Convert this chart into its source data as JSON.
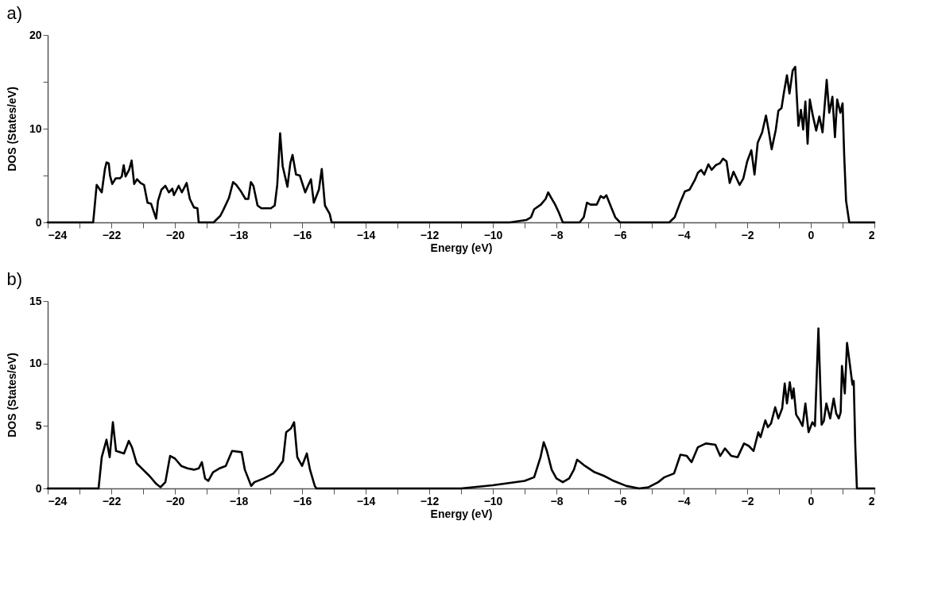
{
  "chart_data": [
    {
      "type": "line",
      "title": "a)",
      "xlabel": "Energy (eV)",
      "ylabel": "DOS (States/eV)",
      "grid": false,
      "line_style": "solid",
      "xlim": [
        -24,
        2
      ],
      "ylim": [
        0,
        20
      ],
      "xticks": [
        -24,
        {
          "value": -23,
          "label": null
        },
        -22,
        {
          "value": -21,
          "label": null
        },
        -20,
        {
          "value": -19,
          "label": null
        },
        -18,
        {
          "value": -17,
          "label": null
        },
        -16,
        {
          "value": -15,
          "label": null
        },
        -14,
        {
          "value": -13,
          "label": null
        },
        -12,
        {
          "value": -11,
          "label": null
        },
        -10,
        {
          "value": -9,
          "label": null
        },
        -8,
        {
          "value": -7,
          "label": null
        },
        -6,
        {
          "value": -5,
          "label": null
        },
        -4,
        {
          "value": -3,
          "label": null
        },
        -2,
        {
          "value": -1,
          "label": null
        },
        0,
        {
          "value": 1,
          "label": null
        },
        2
      ],
      "yticks": [
        0,
        {
          "value": 5,
          "label": null
        },
        10,
        {
          "value": 15,
          "label": null
        },
        20
      ],
      "series": [
        {
          "color": "#000000",
          "x": [
            -24,
            -22.57,
            -22.52,
            -22.46,
            -22.4,
            -22.3,
            -22.2,
            -22.15,
            -22.08,
            -22.04,
            -21.97,
            -21.86,
            -21.73,
            -21.67,
            -21.61,
            -21.55,
            -21.44,
            -21.36,
            -21.28,
            -21.19,
            -21.08,
            -20.97,
            -20.86,
            -20.75,
            -20.59,
            -20.53,
            -20.42,
            -20.3,
            -20.19,
            -20.08,
            -20.03,
            -19.88,
            -19.78,
            -19.63,
            -19.53,
            -19.4,
            -19.29,
            -19.25,
            -18.78,
            -18.57,
            -18.48,
            -18.3,
            -18.17,
            -18.07,
            -17.92,
            -17.78,
            -17.69,
            -17.61,
            -17.53,
            -17.4,
            -17.28,
            -16.98,
            -16.86,
            -16.78,
            -16.69,
            -16.61,
            -16.46,
            -16.37,
            -16.3,
            -16.19,
            -16.07,
            -15.9,
            -15.8,
            -15.72,
            -15.63,
            -15.47,
            -15.38,
            -15.28,
            -15.13,
            -15.07,
            -9.46,
            -8.95,
            -8.8,
            -8.7,
            -8.49,
            -8.34,
            -8.26,
            -8.16,
            -8.04,
            -7.93,
            -7.8,
            -7.27,
            -7.14,
            -7.04,
            -6.93,
            -6.73,
            -6.61,
            -6.51,
            -6.43,
            -6.3,
            -6.15,
            -6.0,
            -4.45,
            -4.28,
            -4.11,
            -3.96,
            -3.81,
            -3.65,
            -3.55,
            -3.45,
            -3.35,
            -3.22,
            -3.12,
            -2.99,
            -2.86,
            -2.76,
            -2.65,
            -2.55,
            -2.43,
            -2.24,
            -2.12,
            -2.0,
            -1.87,
            -1.77,
            -1.67,
            -1.53,
            -1.41,
            -1.33,
            -1.23,
            -1.1,
            -1.02,
            -0.92,
            -0.85,
            -0.75,
            -0.67,
            -0.57,
            -0.49,
            -0.39,
            -0.31,
            -0.24,
            -0.17,
            -0.1,
            -0.03,
            0.07,
            0.17,
            0.27,
            0.37,
            0.5,
            0.58,
            0.68,
            0.76,
            0.83,
            0.93,
            1.0,
            1.05,
            1.11,
            1.21,
            2
          ],
          "values": [
            0,
            0,
            1.8,
            4.0,
            3.7,
            3.2,
            5.7,
            6.4,
            6.3,
            5.0,
            4.1,
            4.7,
            4.7,
            4.9,
            6.1,
            4.9,
            5.6,
            6.6,
            4.1,
            4.6,
            4.2,
            4.0,
            2.1,
            2.0,
            0.4,
            2.3,
            3.5,
            3.9,
            3.2,
            3.6,
            2.9,
            3.9,
            3.2,
            4.2,
            2.5,
            1.6,
            1.5,
            0,
            0,
            0.7,
            1.3,
            2.6,
            4.3,
            4.0,
            3.3,
            2.5,
            2.5,
            4.3,
            3.9,
            1.8,
            1.5,
            1.5,
            1.8,
            4.0,
            9.5,
            6.0,
            3.8,
            6.3,
            7.2,
            5.1,
            5.0,
            3.2,
            4.0,
            4.6,
            2.1,
            3.5,
            5.7,
            1.8,
            0.9,
            0,
            0,
            0.25,
            0.55,
            1.4,
            1.9,
            2.5,
            3.2,
            2.6,
            1.9,
            1.1,
            0,
            0,
            0.55,
            2.1,
            1.9,
            1.9,
            2.8,
            2.6,
            2.9,
            1.8,
            0.55,
            0,
            0,
            0.55,
            2.1,
            3.3,
            3.5,
            4.5,
            5.3,
            5.6,
            5.1,
            6.2,
            5.6,
            6.1,
            6.3,
            6.8,
            6.5,
            4.2,
            5.4,
            4.0,
            4.7,
            6.5,
            7.7,
            5.1,
            8.5,
            9.6,
            11.4,
            9.9,
            7.8,
            9.9,
            11.9,
            12.2,
            13.75,
            15.7,
            13.75,
            16.2,
            16.6,
            10.3,
            12.0,
            9.9,
            12.9,
            8.4,
            13.1,
            11.3,
            9.8,
            11.3,
            9.6,
            15.2,
            11.7,
            13.4,
            9.1,
            13.1,
            11.7,
            12.7,
            7.2,
            2.3,
            0,
            0
          ]
        }
      ]
    },
    {
      "type": "line",
      "title": "b)",
      "xlabel": "Energy (eV)",
      "ylabel": "DOS (States/eV)",
      "grid": false,
      "line_style": "solid",
      "xlim": [
        -24,
        2
      ],
      "ylim": [
        0,
        15
      ],
      "xticks": [
        -24,
        {
          "value": -23,
          "label": null
        },
        -22,
        {
          "value": -21,
          "label": null
        },
        -20,
        {
          "value": -19,
          "label": null
        },
        -18,
        {
          "value": -17,
          "label": null
        },
        -16,
        {
          "value": -15,
          "label": null
        },
        -14,
        {
          "value": -13,
          "label": null
        },
        -12,
        {
          "value": -11,
          "label": null
        },
        -10,
        {
          "value": -9,
          "label": null
        },
        -8,
        {
          "value": -7,
          "label": null
        },
        -6,
        {
          "value": -5,
          "label": null
        },
        -4,
        {
          "value": -3,
          "label": null
        },
        -2,
        {
          "value": -1,
          "label": null
        },
        0,
        {
          "value": 1,
          "label": null
        },
        2
      ],
      "yticks": [
        0,
        5,
        10,
        15
      ],
      "series": [
        {
          "color": "#000000",
          "x": [
            -24,
            -22.4,
            -22.3,
            -22.15,
            -22.05,
            -21.95,
            -21.85,
            -21.6,
            -21.45,
            -21.35,
            -21.2,
            -21.0,
            -20.8,
            -20.6,
            -20.45,
            -20.3,
            -20.15,
            -20.0,
            -19.8,
            -19.6,
            -19.4,
            -19.25,
            -19.15,
            -19.05,
            -18.95,
            -18.8,
            -18.6,
            -18.4,
            -18.2,
            -17.9,
            -17.8,
            -17.6,
            -17.5,
            -17.2,
            -16.9,
            -16.8,
            -16.6,
            -16.5,
            -16.35,
            -16.25,
            -16.15,
            -16.0,
            -15.85,
            -15.75,
            -15.6,
            -15.55,
            -11,
            -10,
            -9,
            -8.7,
            -8.5,
            -8.4,
            -8.3,
            -8.15,
            -8.0,
            -7.8,
            -7.6,
            -7.45,
            -7.35,
            -7.1,
            -6.8,
            -6.5,
            -6.2,
            -5.8,
            -5.4,
            -5.1,
            -4.8,
            -4.6,
            -4.3,
            -4.1,
            -3.9,
            -3.75,
            -3.55,
            -3.3,
            -3.0,
            -2.85,
            -2.7,
            -2.5,
            -2.3,
            -2.1,
            -1.95,
            -1.8,
            -1.65,
            -1.58,
            -1.43,
            -1.35,
            -1.25,
            -1.12,
            -1.02,
            -0.9,
            -0.82,
            -0.75,
            -0.66,
            -0.59,
            -0.54,
            -0.46,
            -0.36,
            -0.26,
            -0.17,
            -0.07,
            0.05,
            0.13,
            0.24,
            0.34,
            0.41,
            0.49,
            0.61,
            0.72,
            0.8,
            0.88,
            0.94,
            0.98,
            1.07,
            1.14,
            1.23,
            1.31,
            1.35,
            1.4,
            1.45,
            2
          ],
          "values": [
            0,
            0,
            2.5,
            3.9,
            2.5,
            5.3,
            3,
            2.8,
            3.8,
            3.3,
            2,
            1.5,
            1.0,
            0.4,
            0.1,
            0.5,
            2.6,
            2.4,
            1.8,
            1.6,
            1.5,
            1.6,
            2.1,
            0.8,
            0.6,
            1.3,
            1.6,
            1.8,
            3.0,
            2.9,
            1.5,
            0.2,
            0.5,
            0.8,
            1.2,
            1.5,
            2.2,
            4.5,
            4.8,
            5.3,
            2.5,
            1.8,
            2.8,
            1.5,
            0.2,
            0,
            0,
            0.25,
            0.6,
            0.9,
            2.5,
            3.7,
            3.0,
            1.5,
            0.8,
            0.5,
            0.8,
            1.5,
            2.3,
            1.8,
            1.3,
            1.0,
            0.6,
            0.2,
            0,
            0.1,
            0.5,
            0.9,
            1.2,
            2.7,
            2.6,
            2.1,
            3.3,
            3.6,
            3.5,
            2.6,
            3.2,
            2.6,
            2.5,
            3.6,
            3.4,
            3.0,
            4.5,
            4.1,
            5.45,
            4.9,
            5.2,
            6.5,
            5.6,
            6.4,
            8.4,
            6.8,
            8.5,
            7.2,
            8.0,
            5.9,
            5.5,
            5.0,
            6.8,
            4.5,
            5.3,
            5.0,
            12.8,
            5.1,
            5.4,
            6.8,
            5.6,
            7.2,
            6.0,
            5.6,
            6.1,
            9.8,
            7.6,
            11.65,
            9.9,
            8.3,
            8.6,
            3.4,
            0,
            0
          ]
        }
      ]
    }
  ]
}
